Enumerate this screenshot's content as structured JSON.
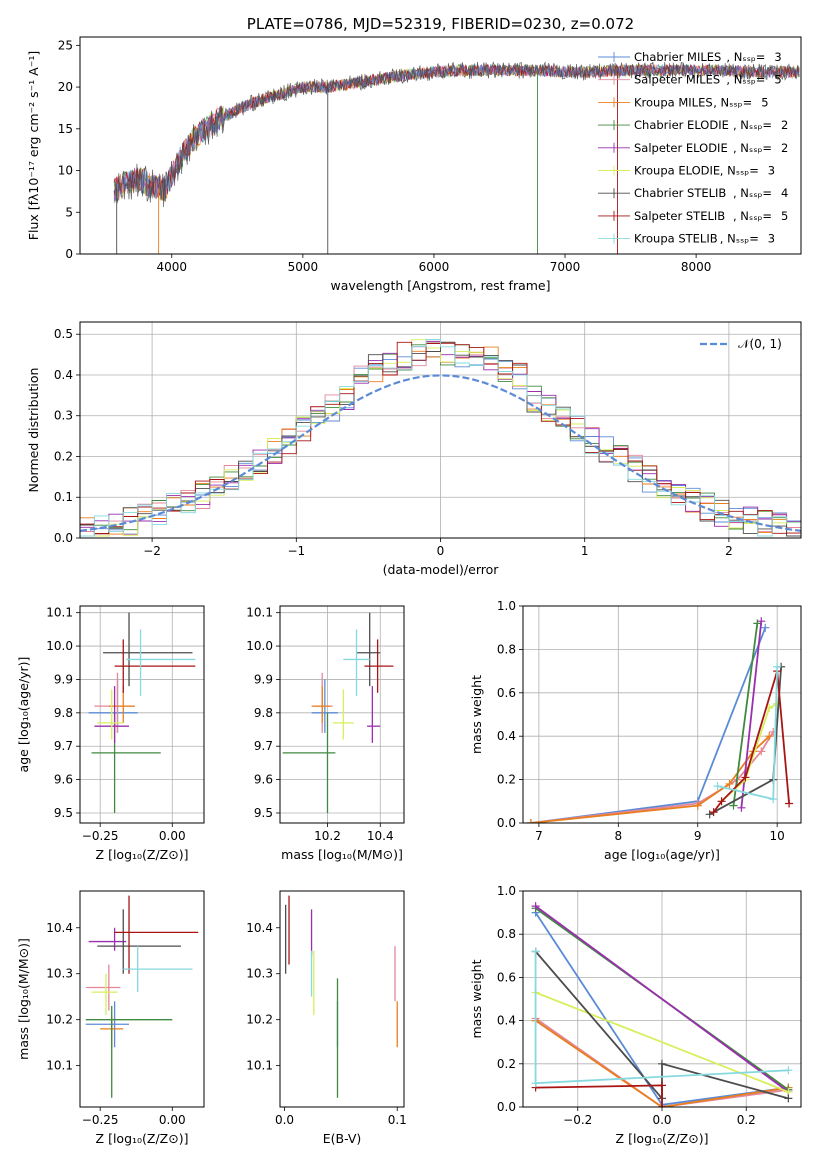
{
  "figure_title": "PLATE=0786, MJD=52319, FIBERID=0230, z=0.072",
  "models": [
    {
      "name": "Chabrier MILES",
      "nssp": "3",
      "color": "#5b8bd6"
    },
    {
      "name": "Salpeter MILES",
      "nssp": "5",
      "color": "#e3879a"
    },
    {
      "name": "Kroupa MILES",
      "nssp": "5",
      "color": "#e87e1d"
    },
    {
      "name": "Chabrier ELODIE",
      "nssp": "2",
      "color": "#3f8a3f"
    },
    {
      "name": "Salpeter ELODIE",
      "nssp": "2",
      "color": "#9b2fae"
    },
    {
      "name": "Kroupa ELODIE",
      "nssp": "3",
      "color": "#d8ee5c"
    },
    {
      "name": "Chabrier STELIB",
      "nssp": "4",
      "color": "#4d4d4d"
    },
    {
      "name": "Salpeter STELIB",
      "nssp": "5",
      "color": "#a81515"
    },
    {
      "name": "Kroupa STELIB",
      "nssp": "3",
      "color": "#86d9de"
    }
  ],
  "chart_data": [
    {
      "id": "spectrum",
      "type": "line",
      "xlabel": "wavelength [Angstrom, rest frame]",
      "ylabel": "Flux [fλ10⁻¹⁷ erg cm⁻² s⁻¹ A⁻¹]",
      "xlim": [
        3300,
        8800
      ],
      "ylim": [
        0,
        26
      ],
      "xticks": [
        4000,
        5000,
        6000,
        7000,
        8000
      ],
      "yticks": [
        0,
        5,
        10,
        15,
        20,
        25
      ],
      "legend": "top-right",
      "continuum_x": [
        3550,
        3650,
        3750,
        3850,
        3950,
        4050,
        4150,
        4250,
        4400,
        4600,
        4800,
        5000,
        5200,
        5400,
        5600,
        5800,
        6000,
        6200,
        6400,
        6600,
        6800,
        7000,
        7200,
        7400,
        7600,
        7800,
        8000,
        8200,
        8400,
        8600,
        8800
      ],
      "continuum_y": [
        7.5,
        8.5,
        9.0,
        8.0,
        7.8,
        11.0,
        13.5,
        15.0,
        16.5,
        18.0,
        19.0,
        20.0,
        20.0,
        20.5,
        21.0,
        21.5,
        21.8,
        22.0,
        22.0,
        22.0,
        22.0,
        21.8,
        21.8,
        22.0,
        22.0,
        22.0,
        22.0,
        22.0,
        21.8,
        21.8,
        21.8
      ]
    },
    {
      "id": "residuals",
      "type": "bar",
      "xlabel": "(data-model)/error",
      "ylabel": "Normed distribution",
      "xlim": [
        -2.5,
        2.5
      ],
      "ylim": [
        0,
        0.53
      ],
      "xticks": [
        -2,
        -1,
        0,
        1,
        2
      ],
      "xtick_labels": [
        "−2",
        "−1",
        "0",
        "1",
        "2"
      ],
      "yticks": [
        0.0,
        0.1,
        0.2,
        0.3,
        0.4,
        0.5
      ],
      "ytick_labels": [
        "0.0",
        "0.1",
        "0.2",
        "0.3",
        "0.4",
        "0.5"
      ],
      "legend_label": "𝒩(0, 1)",
      "legend": "top-right",
      "bin_width": 0.1
    },
    {
      "id": "z-age",
      "type": "scatter",
      "xlabel": "Z [log₁₀(Z/Z⊙)]",
      "ylabel": "age  [log₁₀(age/yr)]",
      "xlim": [
        -0.32,
        0.11
      ],
      "ylim": [
        9.47,
        10.12
      ],
      "xticks": [
        -0.25,
        0.0
      ],
      "xtick_labels": [
        "−0.25",
        "0.00"
      ],
      "yticks": [
        9.5,
        9.6,
        9.7,
        9.8,
        9.9,
        10.0,
        10.1
      ],
      "ytick_labels": [
        "9.5",
        "9.6",
        "9.7",
        "9.8",
        "9.9",
        "10.0",
        "10.1"
      ],
      "points": [
        {
          "model": 0,
          "x": -0.19,
          "y": 9.8,
          "xerr": [
            0.1,
            0.07
          ],
          "yerr": [
            0.06,
            0.1
          ]
        },
        {
          "model": 1,
          "x": -0.19,
          "y": 9.82,
          "xerr": [
            0.08,
            0.06
          ],
          "yerr": [
            0.08,
            0.1
          ]
        },
        {
          "model": 2,
          "x": -0.17,
          "y": 9.82,
          "xerr": [
            0.05,
            0.04
          ],
          "yerr": [
            0.05,
            0.06
          ]
        },
        {
          "model": 3,
          "x": -0.2,
          "y": 9.68,
          "xerr": [
            0.08,
            0.16
          ],
          "yerr": [
            0.18,
            0.12
          ]
        },
        {
          "model": 4,
          "x": -0.2,
          "y": 9.76,
          "xerr": [
            0.07,
            0.05
          ],
          "yerr": [
            0.05,
            0.12
          ]
        },
        {
          "model": 5,
          "x": -0.21,
          "y": 9.77,
          "xerr": [
            0.05,
            0.04
          ],
          "yerr": [
            0.05,
            0.1
          ]
        },
        {
          "model": 6,
          "x": -0.15,
          "y": 9.98,
          "xerr": [
            0.09,
            0.22
          ],
          "yerr": [
            0.1,
            0.12
          ]
        },
        {
          "model": 7,
          "x": -0.17,
          "y": 9.94,
          "xerr": [
            0.03,
            0.25
          ],
          "yerr": [
            0.08,
            0.08
          ]
        },
        {
          "model": 8,
          "x": -0.11,
          "y": 9.96,
          "xerr": [
            0.05,
            0.19
          ],
          "yerr": [
            0.11,
            0.09
          ]
        }
      ]
    },
    {
      "id": "mass-age",
      "type": "scatter",
      "xlabel": "mass [log₁₀(M/M⊙)]",
      "ylabel": "",
      "xlim": [
        10.02,
        10.49
      ],
      "ylim": [
        9.47,
        10.12
      ],
      "xticks": [
        10.2,
        10.4
      ],
      "xtick_labels": [
        "10.2",
        "10.4"
      ],
      "yticks": [
        9.5,
        9.6,
        9.7,
        9.8,
        9.9,
        10.0,
        10.1
      ],
      "ytick_labels": [
        "9.5",
        "9.6",
        "9.7",
        "9.8",
        "9.9",
        "10.0",
        "10.1"
      ],
      "points": [
        {
          "model": 0,
          "x": 10.19,
          "y": 9.8,
          "xerr": [
            0.05,
            0.05
          ],
          "yerr": [
            0.06,
            0.1
          ]
        },
        {
          "model": 1,
          "x": 10.18,
          "y": 9.82,
          "xerr": [
            0.03,
            0.04
          ],
          "yerr": [
            0.08,
            0.1
          ]
        },
        {
          "model": 2,
          "x": 10.18,
          "y": 9.82,
          "xerr": [
            0.04,
            0.03
          ],
          "yerr": [
            0.05,
            0.06
          ]
        },
        {
          "model": 3,
          "x": 10.2,
          "y": 9.68,
          "xerr": [
            0.17,
            0.03
          ],
          "yerr": [
            0.18,
            0.12
          ]
        },
        {
          "model": 4,
          "x": 10.37,
          "y": 9.76,
          "xerr": [
            0.02,
            0.03
          ],
          "yerr": [
            0.05,
            0.12
          ]
        },
        {
          "model": 5,
          "x": 10.26,
          "y": 9.77,
          "xerr": [
            0.04,
            0.04
          ],
          "yerr": [
            0.05,
            0.1
          ]
        },
        {
          "model": 6,
          "x": 10.36,
          "y": 9.98,
          "xerr": [
            0.05,
            0.04
          ],
          "yerr": [
            0.1,
            0.12
          ]
        },
        {
          "model": 7,
          "x": 10.39,
          "y": 9.94,
          "xerr": [
            0.05,
            0.06
          ],
          "yerr": [
            0.08,
            0.08
          ]
        },
        {
          "model": 8,
          "x": 10.31,
          "y": 9.96,
          "xerr": [
            0.05,
            0.05
          ],
          "yerr": [
            0.11,
            0.09
          ]
        }
      ]
    },
    {
      "id": "age-weight",
      "type": "line",
      "xlabel": "age  [log₁₀(age/yr)]",
      "ylabel": "mass weight",
      "xlim": [
        6.8,
        10.3
      ],
      "ylim": [
        0.0,
        1.0
      ],
      "xticks": [
        7,
        8,
        9,
        10
      ],
      "xtick_labels": [
        "7",
        "8",
        "9",
        "10"
      ],
      "yticks": [
        0.0,
        0.2,
        0.4,
        0.6,
        0.8,
        1.0
      ],
      "ytick_labels": [
        "0.0",
        "0.2",
        "0.4",
        "0.6",
        "0.8",
        "1.0"
      ],
      "series": [
        {
          "model": 0,
          "x": [
            6.9,
            9.0,
            9.85
          ],
          "y": [
            0.0,
            0.1,
            0.9
          ]
        },
        {
          "model": 1,
          "x": [
            6.9,
            9.0,
            9.5,
            9.8,
            9.95
          ],
          "y": [
            0.0,
            0.09,
            0.2,
            0.33,
            0.42
          ]
        },
        {
          "model": 2,
          "x": [
            6.9,
            9.0,
            9.4,
            9.7,
            9.9
          ],
          "y": [
            0.0,
            0.08,
            0.18,
            0.33,
            0.4
          ]
        },
        {
          "model": 3,
          "x": [
            9.45,
            9.75
          ],
          "y": [
            0.08,
            0.92
          ]
        },
        {
          "model": 4,
          "x": [
            9.55,
            9.8
          ],
          "y": [
            0.07,
            0.93
          ]
        },
        {
          "model": 5,
          "x": [
            9.3,
            9.6,
            9.9,
            10.0
          ],
          "y": [
            0.1,
            0.2,
            0.53,
            0.55
          ]
        },
        {
          "model": 6,
          "x": [
            9.15,
            9.95,
            10.05
          ],
          "y": [
            0.04,
            0.2,
            0.72
          ]
        },
        {
          "model": 7,
          "x": [
            9.2,
            9.3,
            9.6,
            10.0,
            10.15
          ],
          "y": [
            0.05,
            0.1,
            0.21,
            0.7,
            0.09
          ]
        },
        {
          "model": 8,
          "x": [
            9.25,
            9.95,
            10.0
          ],
          "y": [
            0.17,
            0.11,
            0.72
          ]
        }
      ]
    },
    {
      "id": "z-mass",
      "type": "scatter",
      "xlabel": "Z [log₁₀(Z/Z⊙)]",
      "ylabel": "mass [log₁₀(M/M⊙)]",
      "xlim": [
        -0.32,
        0.11
      ],
      "ylim": [
        10.01,
        10.48
      ],
      "xticks": [
        -0.25,
        0.0
      ],
      "xtick_labels": [
        "−0.25",
        "0.00"
      ],
      "yticks": [
        10.1,
        10.2,
        10.3,
        10.4
      ],
      "ytick_labels": [
        "10.1",
        "10.2",
        "10.3",
        "10.4"
      ],
      "points": [
        {
          "model": 0,
          "x": -0.2,
          "y": 10.19,
          "xerr": [
            0.1,
            0.05
          ],
          "yerr": [
            0.05,
            0.05
          ]
        },
        {
          "model": 1,
          "x": -0.22,
          "y": 10.27,
          "xerr": [
            0.08,
            0.04
          ],
          "yerr": [
            0.05,
            0.05
          ]
        },
        {
          "model": 2,
          "x": -0.21,
          "y": 10.18,
          "xerr": [
            0.04,
            0.04
          ],
          "yerr": [
            0.04,
            0.03
          ]
        },
        {
          "model": 3,
          "x": -0.21,
          "y": 10.2,
          "xerr": [
            0.09,
            0.21
          ],
          "yerr": [
            0.17,
            0.03
          ]
        },
        {
          "model": 4,
          "x": -0.2,
          "y": 10.37,
          "xerr": [
            0.09,
            0.04
          ],
          "yerr": [
            0.02,
            0.03
          ]
        },
        {
          "model": 5,
          "x": -0.23,
          "y": 10.26,
          "xerr": [
            0.05,
            0.04
          ],
          "yerr": [
            0.05,
            0.04
          ]
        },
        {
          "model": 6,
          "x": -0.17,
          "y": 10.36,
          "xerr": [
            0.09,
            0.2
          ],
          "yerr": [
            0.06,
            0.08
          ]
        },
        {
          "model": 7,
          "x": -0.15,
          "y": 10.39,
          "xerr": [
            0.05,
            0.24
          ],
          "yerr": [
            0.09,
            0.08
          ]
        },
        {
          "model": 8,
          "x": -0.12,
          "y": 10.31,
          "xerr": [
            0.05,
            0.19
          ],
          "yerr": [
            0.05,
            0.05
          ]
        }
      ]
    },
    {
      "id": "ebv-mass",
      "type": "scatter",
      "xlabel": "E(B-V)",
      "ylabel": "",
      "xlim": [
        -0.004,
        0.106
      ],
      "ylim": [
        10.01,
        10.48
      ],
      "xticks": [
        0.0,
        0.1
      ],
      "xtick_labels": [
        "0.0",
        "0.1"
      ],
      "yticks": [
        10.1,
        10.2,
        10.3,
        10.4
      ],
      "ytick_labels": [
        "10.1",
        "10.2",
        "10.3",
        "10.4"
      ],
      "points": [
        {
          "model": 0,
          "x": 0.047,
          "y": 10.19,
          "xerr": [
            0,
            0
          ],
          "yerr": [
            0.05,
            0.05
          ]
        },
        {
          "model": 1,
          "x": 0.098,
          "y": 10.3,
          "xerr": [
            0,
            0
          ],
          "yerr": [
            0.06,
            0.06
          ]
        },
        {
          "model": 2,
          "x": 0.1,
          "y": 10.19,
          "xerr": [
            0,
            0
          ],
          "yerr": [
            0.05,
            0.05
          ]
        },
        {
          "model": 3,
          "x": 0.047,
          "y": 10.2,
          "xerr": [
            0,
            0
          ],
          "yerr": [
            0.17,
            0.09
          ]
        },
        {
          "model": 4,
          "x": 0.024,
          "y": 10.39,
          "xerr": [
            0,
            0
          ],
          "yerr": [
            0.05,
            0.05
          ]
        },
        {
          "model": 5,
          "x": 0.026,
          "y": 10.28,
          "xerr": [
            0,
            0
          ],
          "yerr": [
            0.07,
            0.07
          ]
        },
        {
          "model": 6,
          "x": 0.001,
          "y": 10.37,
          "xerr": [
            0,
            0
          ],
          "yerr": [
            0.07,
            0.08
          ]
        },
        {
          "model": 7,
          "x": 0.004,
          "y": 10.4,
          "xerr": [
            0,
            0
          ],
          "yerr": [
            0.08,
            0.07
          ]
        },
        {
          "model": 8,
          "x": 0.024,
          "y": 10.3,
          "xerr": [
            0,
            0
          ],
          "yerr": [
            0.05,
            0.05
          ]
        }
      ]
    },
    {
      "id": "z-weight",
      "type": "line",
      "xlabel": "Z [log₁₀(Z/Z⊙)]",
      "ylabel": "mass weight",
      "xlim": [
        -0.33,
        0.33
      ],
      "ylim": [
        0.0,
        1.0
      ],
      "xticks": [
        -0.2,
        0.0,
        0.2
      ],
      "xtick_labels": [
        "−0.2",
        "0.0",
        "0.2"
      ],
      "yticks": [
        0.0,
        0.2,
        0.4,
        0.6,
        0.8,
        1.0
      ],
      "ytick_labels": [
        "0.0",
        "0.2",
        "0.4",
        "0.6",
        "0.8",
        "1.0"
      ],
      "series": [
        {
          "model": 0,
          "x": [
            -0.3,
            0.0,
            0.3
          ],
          "y": [
            0.9,
            0.01,
            0.09
          ]
        },
        {
          "model": 1,
          "x": [
            -0.3,
            0.0,
            0.3
          ],
          "y": [
            0.41,
            0.0,
            0.08
          ]
        },
        {
          "model": 2,
          "x": [
            -0.3,
            0.0,
            0.3
          ],
          "y": [
            0.4,
            0.0,
            0.09
          ]
        },
        {
          "model": 3,
          "x": [
            -0.3,
            0.3
          ],
          "y": [
            0.92,
            0.08
          ]
        },
        {
          "model": 4,
          "x": [
            -0.3,
            0.3
          ],
          "y": [
            0.93,
            0.07
          ]
        },
        {
          "model": 5,
          "x": [
            -0.3,
            0.3
          ],
          "y": [
            0.53,
            0.07
          ]
        },
        {
          "model": 6,
          "x": [
            -0.3,
            0.0,
            0.0,
            0.3
          ],
          "y": [
            0.72,
            0.04,
            0.2,
            0.04
          ]
        },
        {
          "model": 7,
          "x": [
            -0.3,
            0.0,
            0.0
          ],
          "y": [
            0.09,
            0.1,
            0.0
          ]
        },
        {
          "model": 8,
          "x": [
            -0.3,
            -0.3,
            0.3
          ],
          "y": [
            0.72,
            0.11,
            0.17
          ]
        }
      ]
    }
  ]
}
